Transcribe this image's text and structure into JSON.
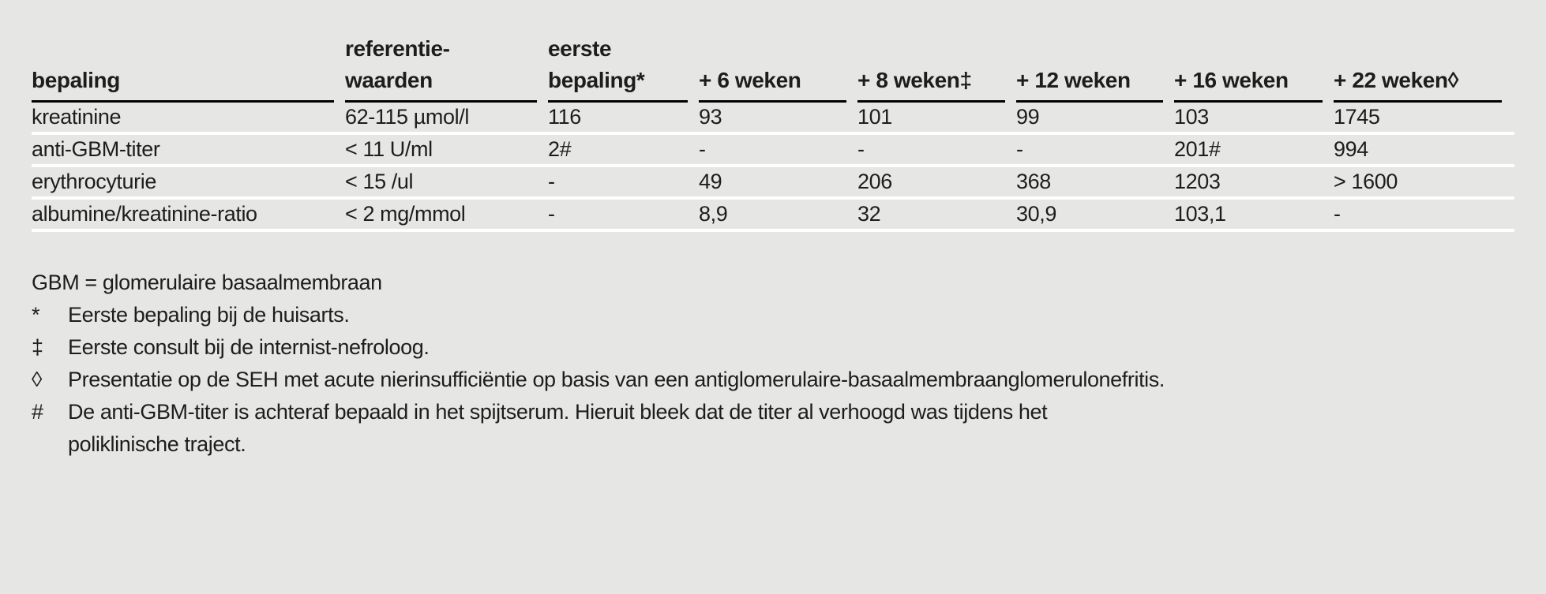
{
  "table": {
    "columns": [
      {
        "line1": "",
        "line2": "bepaling"
      },
      {
        "line1": "referentie-",
        "line2": "waarden"
      },
      {
        "line1": "eerste",
        "line2": "bepaling*"
      },
      {
        "line1": "",
        "line2": "+ 6 weken"
      },
      {
        "line1": "",
        "line2": "+ 8 weken‡"
      },
      {
        "line1": "",
        "line2": "+ 12 weken"
      },
      {
        "line1": "",
        "line2": "+ 16 weken"
      },
      {
        "line1": "",
        "line2": "+ 22 weken◊"
      }
    ],
    "rows": [
      [
        "kreatinine",
        "62-115 µmol/l",
        "116",
        "93",
        "101",
        "99",
        "103",
        "1745"
      ],
      [
        "anti-GBM-titer",
        "< 11 U/ml",
        "2#",
        "-",
        "-",
        "-",
        "201#",
        "994"
      ],
      [
        "erythrocyturie",
        "< 15 /ul",
        "-",
        "49",
        "206",
        "368",
        "1203",
        "> 1600"
      ],
      [
        "albumine/kreatinine-ratio",
        "< 2 mg/mmol",
        "-",
        "8,9",
        "32",
        "30,9",
        "103,1",
        "-"
      ]
    ]
  },
  "footnotes": {
    "abbreviation": "GBM = glomerulaire basaalmembraan",
    "items": [
      {
        "symbol": "*",
        "text": "Eerste bepaling bij de huisarts."
      },
      {
        "symbol": "‡",
        "text": "Eerste consult bij de internist-nefroloog."
      },
      {
        "symbol": "◊",
        "text": "Presentatie op de SEH met acute nierinsufficiëntie op basis van een antiglomerulaire-basaalmembraanglomerulonefritis."
      },
      {
        "symbol": "#",
        "text": "De anti-GBM-titer is achteraf bepaald in het spijtserum. Hieruit bleek dat de titer al verhoogd was tijdens het poliklinische traject."
      }
    ]
  },
  "colors": {
    "background": "#e6e6e5",
    "text": "#1d1d1b",
    "header_rule": "#000000",
    "row_separator": "#ffffff"
  }
}
